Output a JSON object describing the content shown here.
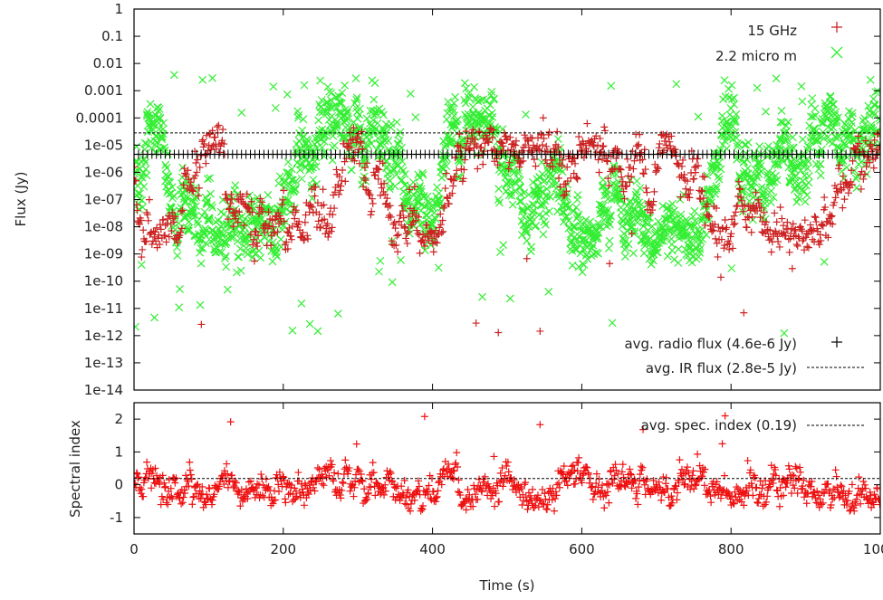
{
  "chart_data": [
    {
      "type": "scatter",
      "xlabel": "Time (s)",
      "ylabel": "Flux (Jy)",
      "xlim": [
        0,
        1000
      ],
      "ylim": [
        1e-14,
        1
      ],
      "yscale": "log",
      "x_ticks": [
        "0",
        "200",
        "400",
        "600",
        "800",
        "1000"
      ],
      "y_ticks": [
        "1",
        "0.1",
        "0.01",
        "0.001",
        "0.0001",
        "1e-05",
        "1e-06",
        "1e-07",
        "1e-08",
        "1e-09",
        "1e-10",
        "1e-11",
        "1e-12",
        "1e-13",
        "1e-14"
      ],
      "legend_top": "top-right",
      "legend_bottom": "bottom-right",
      "series": [
        {
          "name": "15 GHz",
          "color": "#cc2222",
          "marker": "+",
          "typical_range": [
            1e-08,
            1e-05
          ],
          "min": 1e-12,
          "max": 0.0001
        },
        {
          "name": "2.2 micro m",
          "color": "#33ee33",
          "marker": "x",
          "typical_range": [
            1e-08,
            0.0001
          ],
          "min": 1e-12,
          "max": 0.005
        }
      ],
      "reference_lines": [
        {
          "name": "avg. radio flux (4.6e-6 Jy)",
          "value": 4.6e-06,
          "style": "plus-markers"
        },
        {
          "name": "avg. IR flux (2.8e-5 Jy)",
          "value": 2.8e-05,
          "style": "dashed"
        }
      ],
      "colors": {
        "radio": "#cc2222",
        "ir": "#33ee33",
        "reference": "#000000"
      }
    },
    {
      "type": "scatter",
      "xlabel": "Time (s)",
      "ylabel": "Spectral index",
      "xlim": [
        0,
        1000
      ],
      "ylim": [
        -1.5,
        2.5
      ],
      "x_ticks": [
        "0",
        "200",
        "400",
        "600",
        "800",
        "1000"
      ],
      "y_ticks": [
        "2",
        "1",
        "0",
        "-1"
      ],
      "legend": "top-right",
      "series": [
        {
          "name": "spectral index",
          "color": "#ee1111",
          "marker": "+",
          "typical_range": [
            -0.6,
            0.6
          ],
          "min": -0.8,
          "max": 2.4
        }
      ],
      "reference_lines": [
        {
          "name": "avg. spec. index (0.19)",
          "value": 0.19,
          "style": "dashed"
        }
      ]
    }
  ]
}
